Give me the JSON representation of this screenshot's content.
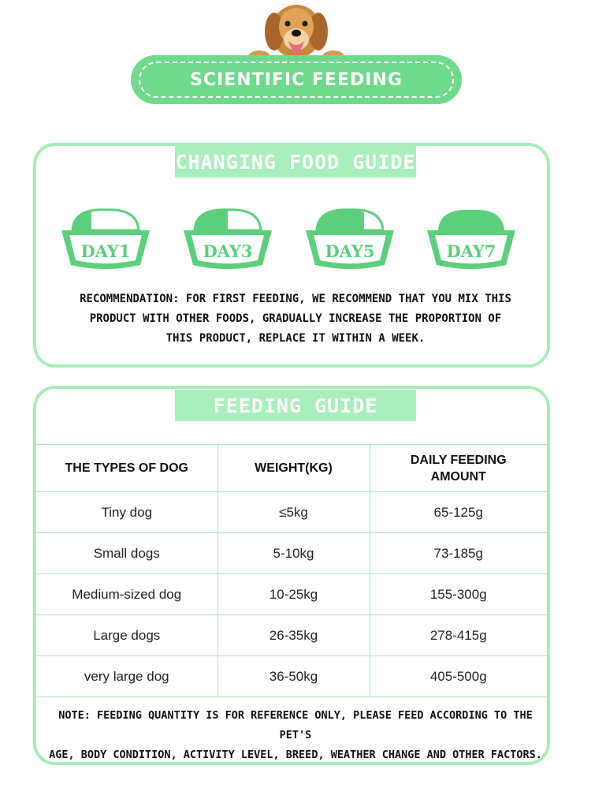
{
  "banner": {
    "title": "SCIENTIFIC FEEDING"
  },
  "changing_guide": {
    "title": "CHANGING FOOD GUIDE",
    "days": [
      {
        "label": "DAY1",
        "new_food_fraction": 0.25
      },
      {
        "label": "DAY3",
        "new_food_fraction": 0.5
      },
      {
        "label": "DAY5",
        "new_food_fraction": 0.75
      },
      {
        "label": "DAY7",
        "new_food_fraction": 1.0
      }
    ],
    "recommendation_lines": [
      "RECOMMENDATION: FOR FIRST FEEDING, WE RECOMMEND THAT YOU MIX THIS",
      "PRODUCT WITH OTHER FOODS, GRADUALLY INCREASE THE PROPORTION OF",
      "THIS PRODUCT, REPLACE IT WITHIN A WEEK."
    ]
  },
  "feeding_guide": {
    "title": "FEEDING GUIDE",
    "headers": [
      "THE TYPES OF DOG",
      "WEIGHT(KG)",
      "DAILY FEEDING AMOUNT"
    ],
    "header_line2": [
      "",
      "",
      ""
    ],
    "rows": [
      [
        "Tiny dog",
        "≤5kg",
        "65-125g"
      ],
      [
        "Small dogs",
        "5-10kg",
        "73-185g"
      ],
      [
        "Medium-sized dog",
        "10-25kg",
        "155-300g"
      ],
      [
        "Large dogs",
        "26-35kg",
        "278-415g"
      ],
      [
        "very large dog",
        "36-50kg",
        "405-500g"
      ]
    ],
    "note_lines": [
      "NOTE: FEEDING QUANTITY IS FOR REFERENCE ONLY, PLEASE FEED ACCORDING TO THE PET'S",
      "AGE, BODY CONDITION, ACTIVITY LEVEL, BREED, WEATHER CHANGE AND OTHER FACTORS."
    ]
  },
  "colors": {
    "accent": "#6fd98c",
    "light": "#a9efbd",
    "border": "#a8ecb9",
    "food": "#5ccf7c"
  }
}
